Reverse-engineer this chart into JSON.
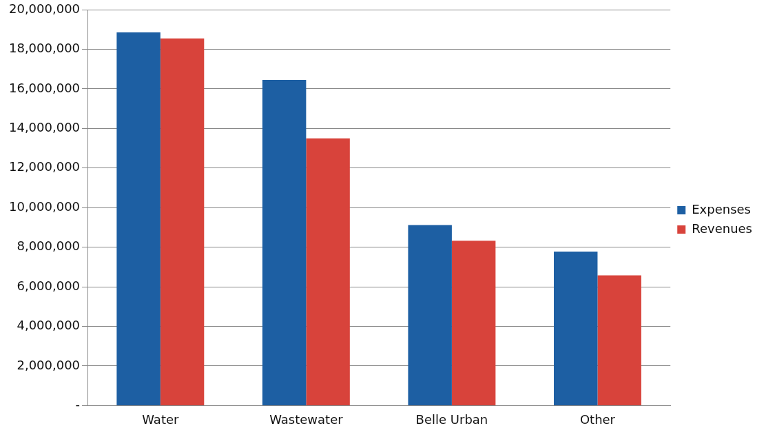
{
  "chart_data": {
    "type": "bar",
    "categories": [
      "Water",
      "Wastewater",
      "Belle Urban",
      "Other"
    ],
    "series": [
      {
        "name": "Expenses",
        "color": "#1d5fa3",
        "values": [
          18850000,
          16450000,
          9120000,
          7780000
        ]
      },
      {
        "name": "Revenues",
        "color": "#d8433b",
        "values": [
          18550000,
          13500000,
          8330000,
          6580000
        ]
      }
    ],
    "ylim": [
      0,
      20000000
    ],
    "yticks": [
      {
        "value": 0,
        "label": "-"
      },
      {
        "value": 2000000,
        "label": "2,000,000"
      },
      {
        "value": 4000000,
        "label": "4,000,000"
      },
      {
        "value": 6000000,
        "label": "6,000,000"
      },
      {
        "value": 8000000,
        "label": "8,000,000"
      },
      {
        "value": 10000000,
        "label": "10,000,000"
      },
      {
        "value": 12000000,
        "label": "12,000,000"
      },
      {
        "value": 14000000,
        "label": "14,000,000"
      },
      {
        "value": 16000000,
        "label": "16,000,000"
      },
      {
        "value": 18000000,
        "label": "18,000,000"
      },
      {
        "value": 20000000,
        "label": "20,000,000"
      }
    ],
    "grid": "y",
    "legend": "right"
  }
}
